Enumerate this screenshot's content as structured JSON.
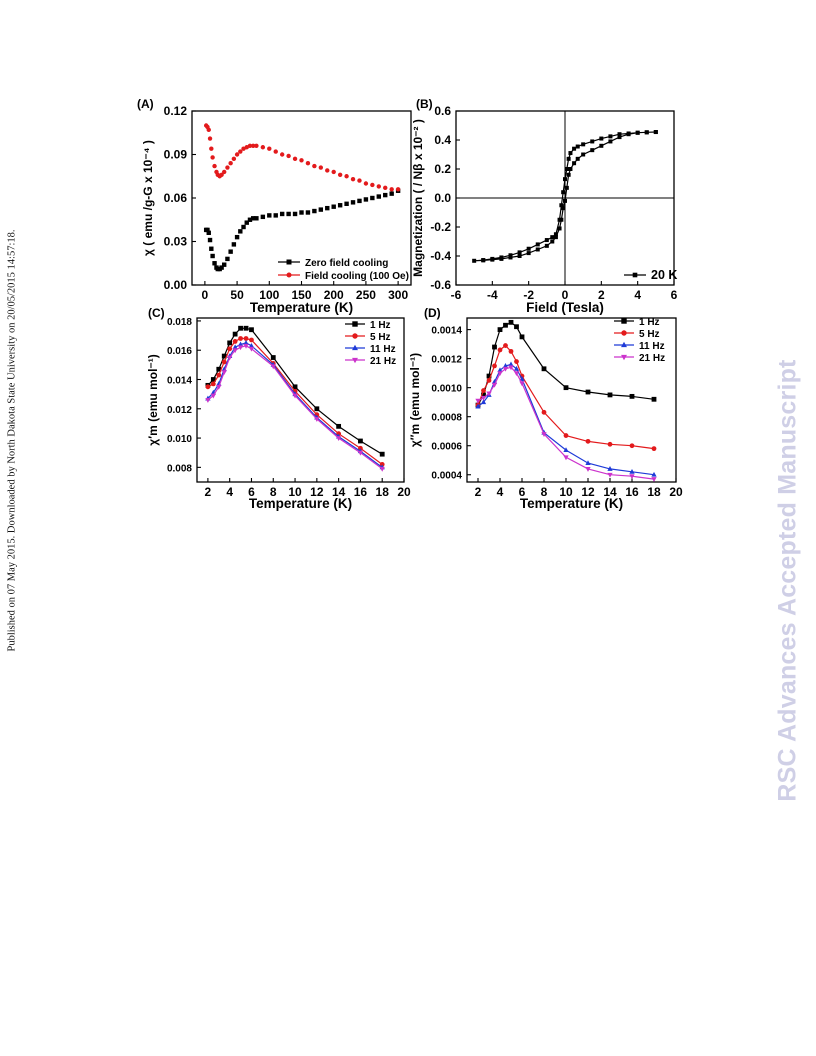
{
  "side_note": "Published on 07 May 2015. Downloaded by North Dakota State University on 20/05/2015 14:57:18.",
  "watermark": "RSC Advances Accepted Manuscript",
  "chart_data": [
    {
      "panel_label": "(A)",
      "type": "scatter",
      "xlabel": "Temperature (K)",
      "ylabel": "χ ( emu /g-G x 10⁻⁴ )",
      "xlim": [
        -20,
        320
      ],
      "ylim": [
        0,
        0.12
      ],
      "xticks": [
        0,
        50,
        100,
        150,
        200,
        250,
        300
      ],
      "xtick_labels": [
        "0",
        "50",
        "100",
        "150",
        "200",
        "250",
        "300"
      ],
      "yticks": [
        0,
        0.03,
        0.06,
        0.09,
        0.12
      ],
      "ytick_labels": [
        "0.00",
        "0.03",
        "0.06",
        "0.09",
        "0.12"
      ],
      "legend_position": "bottom-right",
      "series": [
        {
          "name": "Zero field cooling",
          "color": "#000000",
          "marker": "square",
          "x": [
            2,
            4,
            6,
            8,
            10,
            12,
            15,
            18,
            20,
            23,
            26,
            30,
            35,
            40,
            45,
            50,
            55,
            60,
            65,
            70,
            75,
            80,
            90,
            100,
            110,
            120,
            130,
            140,
            150,
            160,
            170,
            180,
            190,
            200,
            210,
            220,
            230,
            240,
            250,
            260,
            270,
            280,
            290,
            300
          ],
          "y": [
            0.038,
            0.038,
            0.036,
            0.031,
            0.025,
            0.02,
            0.015,
            0.012,
            0.011,
            0.011,
            0.012,
            0.014,
            0.018,
            0.023,
            0.028,
            0.033,
            0.037,
            0.04,
            0.043,
            0.045,
            0.046,
            0.046,
            0.047,
            0.048,
            0.048,
            0.049,
            0.049,
            0.049,
            0.05,
            0.05,
            0.051,
            0.052,
            0.053,
            0.054,
            0.055,
            0.056,
            0.057,
            0.058,
            0.059,
            0.06,
            0.061,
            0.062,
            0.063,
            0.065
          ]
        },
        {
          "name": "Field cooling (100 Oe)",
          "color": "#e31a1c",
          "marker": "circle",
          "x": [
            2,
            4,
            6,
            8,
            10,
            12,
            15,
            18,
            20,
            23,
            26,
            30,
            35,
            40,
            45,
            50,
            55,
            60,
            65,
            70,
            75,
            80,
            90,
            100,
            110,
            120,
            130,
            140,
            150,
            160,
            170,
            180,
            190,
            200,
            210,
            220,
            230,
            240,
            250,
            260,
            270,
            280,
            290,
            300
          ],
          "y": [
            0.11,
            0.109,
            0.107,
            0.101,
            0.094,
            0.088,
            0.082,
            0.078,
            0.076,
            0.075,
            0.076,
            0.078,
            0.081,
            0.084,
            0.087,
            0.09,
            0.092,
            0.094,
            0.095,
            0.096,
            0.096,
            0.096,
            0.095,
            0.094,
            0.092,
            0.09,
            0.089,
            0.087,
            0.086,
            0.084,
            0.082,
            0.081,
            0.079,
            0.078,
            0.076,
            0.075,
            0.073,
            0.072,
            0.07,
            0.069,
            0.068,
            0.067,
            0.066,
            0.066
          ]
        }
      ]
    },
    {
      "panel_label": "(B)",
      "type": "scatter",
      "xlabel": "Field (Tesla)",
      "ylabel": "Magnetization ( / Nβ x 10⁻² )",
      "xlim": [
        -6,
        6
      ],
      "ylim": [
        -0.6,
        0.6
      ],
      "xticks": [
        -6,
        -4,
        -2,
        0,
        2,
        4,
        6
      ],
      "xtick_labels": [
        "-6",
        "-4",
        "-2",
        "0",
        "2",
        "4",
        "6"
      ],
      "yticks": [
        -0.6,
        -0.4,
        -0.2,
        0,
        0.2,
        0.4,
        0.6
      ],
      "ytick_labels": [
        "-0.6",
        "-0.4",
        "-0.2",
        "0.0",
        "0.2",
        "0.4",
        "0.6"
      ],
      "zero_lines": true,
      "legend_position": "bottom-right",
      "series": [
        {
          "name": "20 K",
          "color": "#000000",
          "marker": "square",
          "x": [
            5,
            4.5,
            4,
            3.5,
            3,
            2.5,
            2,
            1.5,
            1,
            0.7,
            0.5,
            0.3,
            0.2,
            0.1,
            0,
            -0.1,
            -0.2,
            -0.3,
            -0.5,
            -0.7,
            -1,
            -1.5,
            -2,
            -2.5,
            -3,
            -3.5,
            -4,
            -4.5,
            -5,
            -4.5,
            -4,
            -3.5,
            -3,
            -2.5,
            -2,
            -1.5,
            -1,
            -0.7,
            -0.5,
            -0.3,
            -0.2,
            -0.1,
            0,
            0.1,
            0.2,
            0.3,
            0.5,
            0.7,
            1,
            1.5,
            2,
            2.5,
            3,
            3.5,
            4,
            4.5,
            5
          ],
          "y": [
            0.455,
            0.453,
            0.45,
            0.445,
            0.44,
            0.425,
            0.41,
            0.39,
            0.37,
            0.355,
            0.34,
            0.31,
            0.27,
            0.2,
            0.13,
            0.04,
            -0.05,
            -0.15,
            -0.25,
            -0.27,
            -0.29,
            -0.32,
            -0.35,
            -0.375,
            -0.395,
            -0.41,
            -0.42,
            -0.428,
            -0.433,
            -0.43,
            -0.425,
            -0.42,
            -0.41,
            -0.4,
            -0.38,
            -0.355,
            -0.33,
            -0.3,
            -0.27,
            -0.21,
            -0.15,
            -0.07,
            -0.02,
            0.07,
            0.16,
            0.2,
            0.24,
            0.27,
            0.3,
            0.33,
            0.36,
            0.39,
            0.42,
            0.44,
            0.45,
            0.453,
            0.455
          ]
        }
      ]
    },
    {
      "panel_label": "(C)",
      "type": "line",
      "xlabel": "Temperature (K)",
      "ylabel": "χ′m (emu mol⁻¹)",
      "xlim": [
        1,
        20
      ],
      "ylim": [
        0.007,
        0.0182
      ],
      "xticks": [
        2,
        4,
        6,
        8,
        10,
        12,
        14,
        16,
        18,
        20
      ],
      "xtick_labels": [
        "2",
        "4",
        "6",
        "8",
        "10",
        "12",
        "14",
        "16",
        "18",
        "20"
      ],
      "yticks": [
        0.008,
        0.01,
        0.012,
        0.014,
        0.016,
        0.018
      ],
      "ytick_labels": [
        "0.008",
        "0.010",
        "0.012",
        "0.014",
        "0.016",
        "0.018"
      ],
      "legend_position": "top-right",
      "x": [
        2,
        2.5,
        3,
        3.5,
        4,
        4.5,
        5,
        5.5,
        6,
        8,
        10,
        12,
        14,
        16,
        18
      ],
      "series": [
        {
          "name": "1  Hz",
          "color": "#000000",
          "marker": "square",
          "values": [
            0.0136,
            0.014,
            0.0147,
            0.0156,
            0.0165,
            0.0171,
            0.0175,
            0.0175,
            0.0174,
            0.0155,
            0.0135,
            0.012,
            0.0108,
            0.0098,
            0.0089
          ]
        },
        {
          "name": "5  Hz",
          "color": "#e31a1c",
          "marker": "circle",
          "values": [
            0.0135,
            0.0137,
            0.0143,
            0.0152,
            0.0161,
            0.0166,
            0.0168,
            0.0168,
            0.0167,
            0.0151,
            0.0132,
            0.0116,
            0.0103,
            0.0093,
            0.0082
          ]
        },
        {
          "name": "11 Hz",
          "color": "#1f3bd8",
          "marker": "triangle-up",
          "values": [
            0.0127,
            0.0131,
            0.0137,
            0.0147,
            0.0156,
            0.0162,
            0.0164,
            0.0165,
            0.0163,
            0.015,
            0.013,
            0.0114,
            0.0101,
            0.0091,
            0.008
          ]
        },
        {
          "name": "21 Hz",
          "color": "#cc33cc",
          "marker": "triangle-down",
          "values": [
            0.0126,
            0.0129,
            0.0135,
            0.0145,
            0.0155,
            0.016,
            0.0162,
            0.0163,
            0.0161,
            0.0149,
            0.0129,
            0.0113,
            0.01,
            0.009,
            0.0079
          ]
        }
      ]
    },
    {
      "panel_label": "(D)",
      "type": "line",
      "xlabel": "Temperature (K)",
      "ylabel": "χ′′m (emu mol⁻¹)",
      "xlim": [
        1,
        20
      ],
      "ylim": [
        0.00035,
        0.00148
      ],
      "xticks": [
        2,
        4,
        6,
        8,
        10,
        12,
        14,
        16,
        18,
        20
      ],
      "xtick_labels": [
        "2",
        "4",
        "6",
        "8",
        "10",
        "12",
        "14",
        "16",
        "18",
        "20"
      ],
      "yticks": [
        0.0004,
        0.0006,
        0.0008,
        0.001,
        0.0012,
        0.0014
      ],
      "ytick_labels": [
        "0.0004",
        "0.0006",
        "0.0008",
        "0.0010",
        "0.0012",
        "0.0014"
      ],
      "legend_position": "top-right",
      "x": [
        2,
        2.5,
        3,
        3.5,
        4,
        4.5,
        5,
        5.5,
        6,
        8,
        10,
        12,
        14,
        16,
        18
      ],
      "series": [
        {
          "name": "1   Hz",
          "color": "#000000",
          "marker": "square",
          "values": [
            0.00088,
            0.00095,
            0.00108,
            0.00128,
            0.0014,
            0.00143,
            0.00145,
            0.00142,
            0.00135,
            0.00113,
            0.001,
            0.00097,
            0.00095,
            0.00094,
            0.00092
          ]
        },
        {
          "name": "5   Hz",
          "color": "#e31a1c",
          "marker": "circle",
          "values": [
            0.00088,
            0.00098,
            0.00105,
            0.00115,
            0.00126,
            0.00129,
            0.00125,
            0.00118,
            0.00108,
            0.00083,
            0.00067,
            0.00063,
            0.00061,
            0.0006,
            0.00058
          ]
        },
        {
          "name": "11 Hz",
          "color": "#1f3bd8",
          "marker": "triangle-up",
          "values": [
            0.00087,
            0.0009,
            0.00095,
            0.00104,
            0.00112,
            0.00115,
            0.00116,
            0.00113,
            0.00106,
            0.00069,
            0.00057,
            0.00048,
            0.00044,
            0.00042,
            0.0004
          ]
        },
        {
          "name": "21 Hz",
          "color": "#cc33cc",
          "marker": "triangle-down",
          "values": [
            0.00091,
            0.00093,
            0.00096,
            0.00102,
            0.0011,
            0.00113,
            0.00114,
            0.0011,
            0.00103,
            0.00068,
            0.00052,
            0.00044,
            0.0004,
            0.00039,
            0.00037
          ]
        }
      ]
    }
  ]
}
